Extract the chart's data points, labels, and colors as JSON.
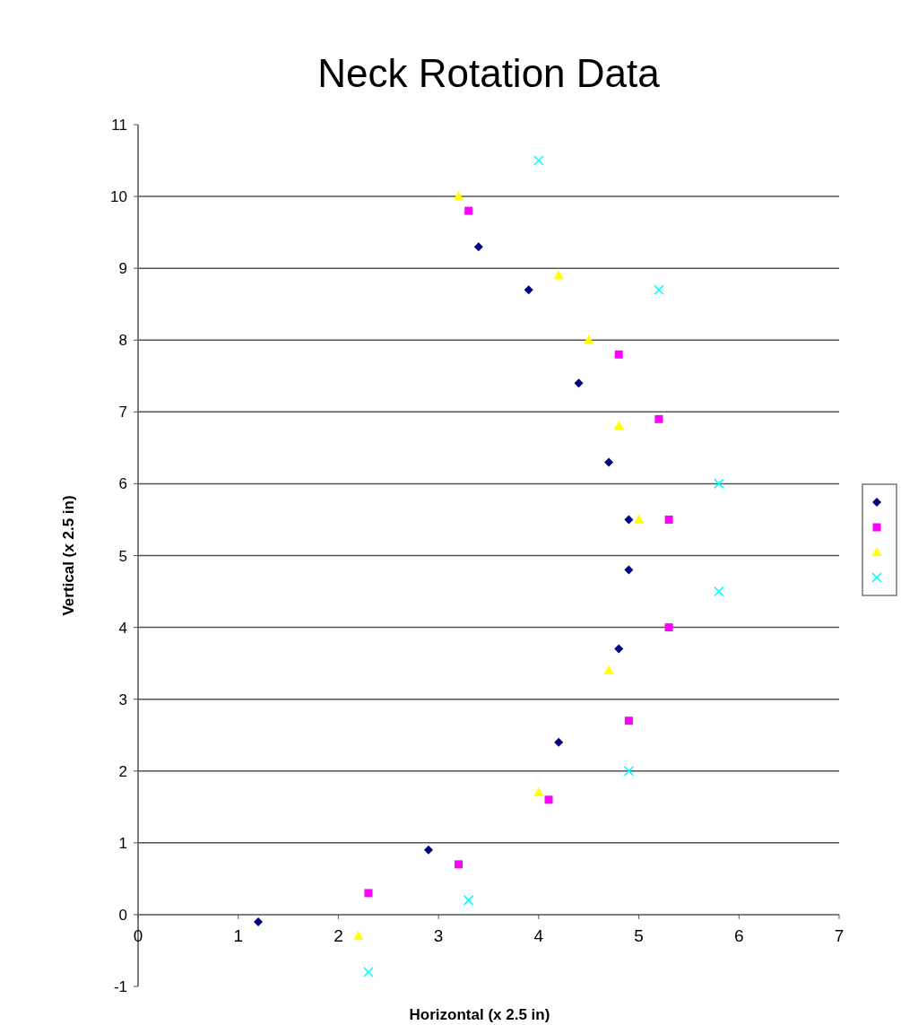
{
  "chart_data": {
    "type": "scatter",
    "title": "Neck Rotation Data",
    "xlabel": "Horizontal (x 2.5 in)",
    "ylabel": "Vertical (x 2.5 in)",
    "xlim": [
      0,
      7
    ],
    "xticks": [
      0,
      1,
      2,
      3,
      4,
      5,
      6,
      7
    ],
    "ylim": [
      -1,
      11
    ],
    "yticks": [
      -1,
      0,
      1,
      2,
      3,
      4,
      5,
      6,
      7,
      8,
      9,
      10,
      11
    ],
    "grid": "y",
    "series": [
      {
        "color": "#000080",
        "marker": "diamond",
        "x": [
          1.2,
          2.9,
          4.2,
          4.8,
          4.9,
          4.9,
          4.7,
          4.4,
          3.9,
          3.4
        ],
        "values": [
          -0.1,
          0.9,
          2.4,
          3.7,
          4.8,
          5.5,
          6.3,
          7.4,
          8.7,
          9.3
        ]
      },
      {
        "color": "#ff00ff",
        "marker": "square",
        "x": [
          2.3,
          3.2,
          4.1,
          4.9,
          5.3,
          5.3,
          5.2,
          4.8,
          3.3
        ],
        "values": [
          0.3,
          0.7,
          1.6,
          2.7,
          4.0,
          5.5,
          6.9,
          7.8,
          9.8
        ]
      },
      {
        "color": "#ffff00",
        "marker": "triangle",
        "x": [
          2.2,
          4.0,
          4.7,
          5.0,
          4.8,
          4.5,
          4.2,
          3.2
        ],
        "values": [
          -0.3,
          1.7,
          3.4,
          5.5,
          6.8,
          8.0,
          8.9,
          10.0
        ]
      },
      {
        "color": "#00ffff",
        "marker": "cross",
        "x": [
          2.3,
          3.3,
          4.9,
          5.8,
          5.8,
          5.2,
          4.0
        ],
        "values": [
          -0.8,
          0.2,
          2.0,
          4.5,
          6.0,
          8.7,
          10.5
        ]
      }
    ]
  }
}
